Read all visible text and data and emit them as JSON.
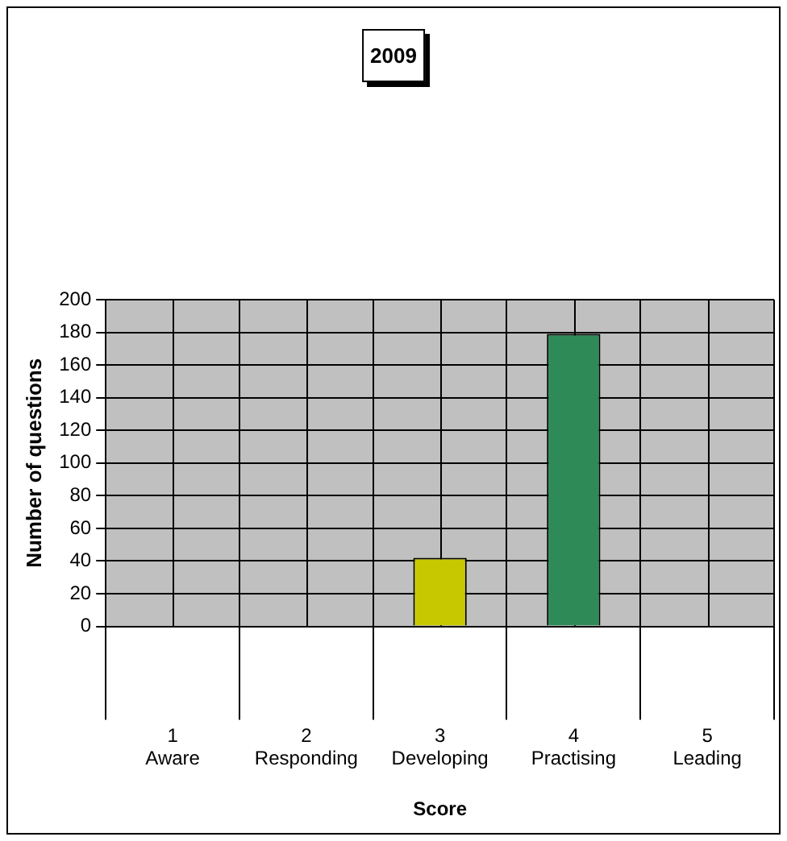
{
  "chart_data": {
    "type": "bar",
    "title": "2009",
    "xlabel": "Score",
    "ylabel": "Number of questions",
    "categories": [
      "1\nAware",
      "2\nResponding",
      "3\nDeveloping",
      "4\nPractising",
      "5\nLeading"
    ],
    "values": [
      0,
      0,
      42,
      179,
      0
    ],
    "colors": [
      "#d8d800",
      "#d8d800",
      "#c8c800",
      "#2e8b57",
      "#2e8b57"
    ],
    "ylim": [
      0,
      200
    ],
    "yticks": [
      0,
      20,
      40,
      60,
      80,
      100,
      120,
      140,
      160,
      180,
      200
    ],
    "grid": true,
    "legend": false
  }
}
